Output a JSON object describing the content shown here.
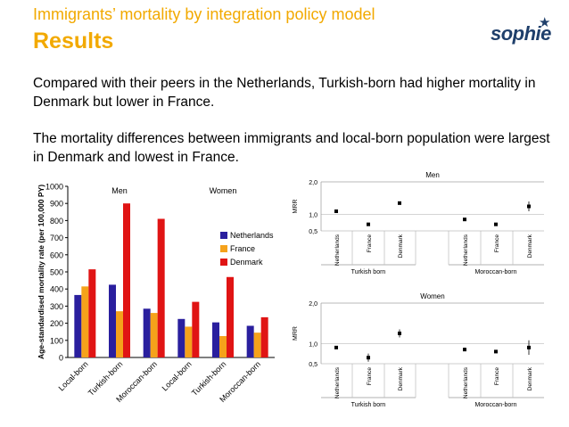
{
  "slide": {
    "subtitle": "Immigrants’ mortality by integration policy model",
    "title": "Results",
    "logo": "sophie",
    "paragraphs": [
      "Compared with their peers in the Netherlands, Turkish-born had higher mortality in Denmark but lower in France.",
      "The mortality differences between immigrants and local-born population were largest in Denmark and lowest in France."
    ]
  },
  "colors": {
    "accent": "#F2A900",
    "netherlands": "#2A1F9E",
    "france": "#F5A21B",
    "denmark": "#E01414"
  },
  "chart_data": [
    {
      "type": "bar",
      "ylabel": "Age-standardised mortality rate (per 100,000 PY)",
      "ylim": [
        0,
        1000
      ],
      "yticks": [
        0,
        100,
        200,
        300,
        400,
        500,
        600,
        700,
        800,
        900,
        1000
      ],
      "categories": [
        "Local-born",
        "Turkish-born",
        "Moroccan-born",
        "Local-born",
        "Turkish-born",
        "Moroccan-born"
      ],
      "groups": [
        "Men",
        "Women"
      ],
      "series": [
        {
          "name": "Netherlands",
          "values": [
            365,
            425,
            285,
            225,
            205,
            185
          ]
        },
        {
          "name": "France",
          "values": [
            415,
            270,
            260,
            180,
            125,
            145
          ]
        },
        {
          "name": "Denmark",
          "values": [
            515,
            900,
            810,
            325,
            470,
            235
          ]
        }
      ],
      "legend": [
        "Netherlands",
        "France",
        "Denmark"
      ]
    },
    {
      "type": "scatter",
      "title": "Men",
      "ylabel": "MRR",
      "ylim": [
        0.5,
        2.0
      ],
      "yticks": [
        "2,0",
        "1,0",
        "0,5"
      ],
      "categories": [
        "Netherlands",
        "France",
        "Denmark",
        "Netherlands",
        "France",
        "Denmark"
      ],
      "groups": [
        "Turkish born",
        "Moroccan-born"
      ],
      "values": [
        1.1,
        0.7,
        1.35,
        0.85,
        0.7,
        1.25
      ],
      "ci_low": [
        1.07,
        0.65,
        1.3,
        0.82,
        0.66,
        1.1
      ],
      "ci_high": [
        1.13,
        0.75,
        1.4,
        0.88,
        0.74,
        1.4
      ]
    },
    {
      "type": "scatter",
      "title": "Women",
      "ylabel": "MRR",
      "ylim": [
        0.5,
        2.0
      ],
      "yticks": [
        "2,0",
        "1,0",
        "0,5"
      ],
      "categories": [
        "Netherlands",
        "France",
        "Denmark",
        "Netherlands",
        "France",
        "Denmark"
      ],
      "groups": [
        "Turkish born",
        "Moroccan-born"
      ],
      "values": [
        0.9,
        0.65,
        1.25,
        0.85,
        0.8,
        0.9
      ],
      "ci_low": [
        0.87,
        0.55,
        1.15,
        0.82,
        0.77,
        0.72
      ],
      "ci_high": [
        0.93,
        0.75,
        1.35,
        0.9,
        0.83,
        1.08
      ]
    }
  ]
}
